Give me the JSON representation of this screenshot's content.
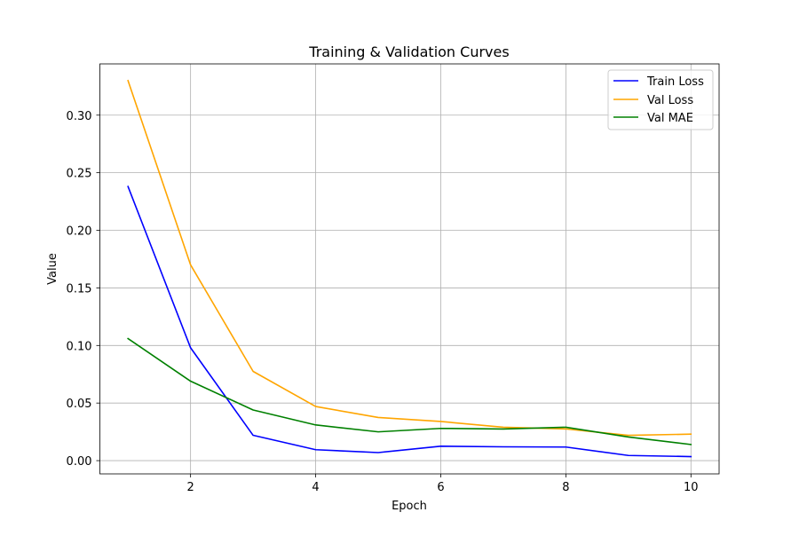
{
  "chart_data": {
    "type": "line",
    "title": "Training & Validation Curves",
    "xlabel": "Epoch",
    "ylabel": "Value",
    "xlim": [
      0.55,
      10.45
    ],
    "ylim": [
      -0.0115,
      0.3445
    ],
    "x": [
      1,
      2,
      3,
      4,
      5,
      6,
      7,
      8,
      9,
      10
    ],
    "xticks": [
      2,
      4,
      6,
      8,
      10
    ],
    "xtick_labels": [
      "2",
      "4",
      "6",
      "8",
      "10"
    ],
    "yticks": [
      0.0,
      0.05,
      0.1,
      0.15,
      0.2,
      0.25,
      0.3
    ],
    "ytick_labels": [
      "0.00",
      "0.05",
      "0.10",
      "0.15",
      "0.20",
      "0.25",
      "0.30"
    ],
    "grid": true,
    "legend_position": "top-right",
    "series": [
      {
        "name": "Train Loss",
        "color": "#0000ff",
        "values": [
          0.238,
          0.098,
          0.022,
          0.0095,
          0.007,
          0.0125,
          0.012,
          0.0118,
          0.0045,
          0.0035
        ]
      },
      {
        "name": "Val Loss",
        "color": "#ffa500",
        "values": [
          0.33,
          0.17,
          0.0775,
          0.047,
          0.0375,
          0.034,
          0.029,
          0.0275,
          0.022,
          0.023
        ]
      },
      {
        "name": "Val MAE",
        "color": "#008000",
        "values": [
          0.106,
          0.069,
          0.044,
          0.031,
          0.025,
          0.028,
          0.0275,
          0.029,
          0.0205,
          0.014
        ]
      }
    ]
  }
}
